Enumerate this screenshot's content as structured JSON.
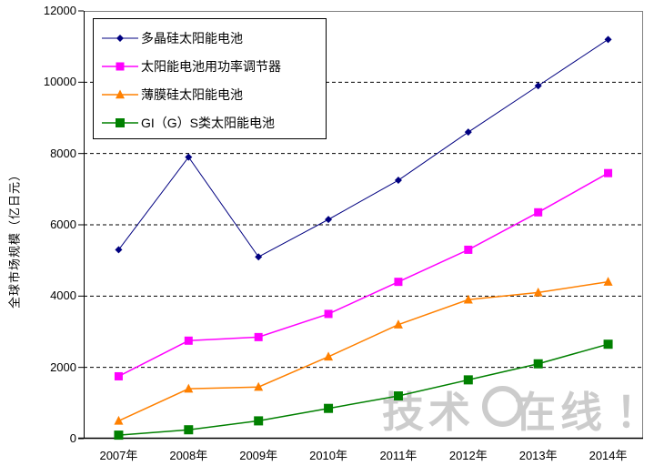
{
  "chart_data": {
    "type": "line",
    "title": "",
    "xlabel": "",
    "ylabel": "全球市场规模（亿日元）",
    "ylim": [
      0,
      12000
    ],
    "yticks": [
      0,
      2000,
      4000,
      6000,
      8000,
      10000,
      12000
    ],
    "grid": "horizontal-dashed",
    "legend_position": "top-left-inside",
    "categories": [
      "2007年",
      "2008年",
      "2009年",
      "2010年",
      "2011年",
      "2012年",
      "2013年",
      "2014年"
    ],
    "series": [
      {
        "name": "多晶硅太阳能电池",
        "color": "#000080",
        "marker": "diamond",
        "values": [
          5300,
          7900,
          5100,
          6150,
          7250,
          8600,
          9900,
          11200
        ]
      },
      {
        "name": "太阳能电池用功率调节器",
        "color": "#FF00FF",
        "marker": "square",
        "values": [
          1750,
          2750,
          2850,
          3500,
          4400,
          5300,
          6350,
          7450
        ]
      },
      {
        "name": "薄膜硅太阳能电池",
        "color": "#FF8000",
        "marker": "triangle",
        "values": [
          500,
          1400,
          1450,
          2300,
          3200,
          3900,
          4100,
          4400
        ]
      },
      {
        "name": "GI（G）S类太阳能电池",
        "color": "#008000",
        "marker": "square",
        "values": [
          100,
          250,
          500,
          850,
          1200,
          1650,
          2100,
          2650
        ]
      }
    ]
  },
  "watermark": {
    "part1": "技术",
    "part2": "在线",
    "part3": "！"
  }
}
